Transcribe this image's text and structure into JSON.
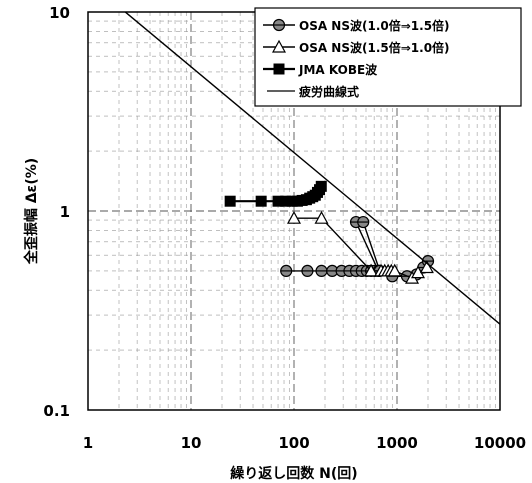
{
  "chart_data": {
    "type": "scatter",
    "title": "",
    "xlabel": "繰り返し回数 N(回)",
    "ylabel": "全歪振幅 Δε(%)",
    "x_scale": "log",
    "y_scale": "log",
    "xlim": [
      1,
      10000
    ],
    "ylim": [
      0.1,
      10
    ],
    "x_ticks": [
      "1",
      "10",
      "100",
      "1000",
      "10000"
    ],
    "y_ticks": [
      "10",
      "1",
      "0.1"
    ],
    "grid": "dashed minor and major gridlines",
    "legend_position": "top-right",
    "series": [
      {
        "name": "OSA NS波(1.0倍⇒1.5倍)",
        "marker": "circle",
        "points": [
          [
            84,
            0.5
          ],
          [
            135,
            0.5
          ],
          [
            185,
            0.5
          ],
          [
            235,
            0.5
          ],
          [
            290,
            0.5
          ],
          [
            345,
            0.5
          ],
          [
            400,
            0.5
          ],
          [
            455,
            0.5
          ],
          [
            510,
            0.5
          ],
          [
            560,
            0.5
          ],
          [
            610,
            0.5
          ],
          [
            660,
            0.5
          ],
          [
            400,
            0.88
          ],
          [
            470,
            0.88
          ],
          [
            680,
            0.5
          ],
          [
            900,
            0.47
          ],
          [
            1250,
            0.47
          ],
          [
            1550,
            0.48
          ],
          [
            1800,
            0.52
          ],
          [
            2000,
            0.56
          ]
        ]
      },
      {
        "name": "OSA NS波(1.5倍⇒1.0倍)",
        "marker": "triangle",
        "points": [
          [
            100,
            0.92
          ],
          [
            185,
            0.92
          ],
          [
            560,
            0.5
          ],
          [
            700,
            0.5
          ],
          [
            760,
            0.5
          ],
          [
            820,
            0.5
          ],
          [
            880,
            0.5
          ],
          [
            950,
            0.5
          ],
          [
            1400,
            0.46
          ],
          [
            1600,
            0.49
          ],
          [
            1950,
            0.52
          ]
        ]
      },
      {
        "name": "JMA KOBE波",
        "marker": "square",
        "points": [
          [
            24,
            1.12
          ],
          [
            48,
            1.12
          ],
          [
            70,
            1.12
          ],
          [
            83,
            1.12
          ],
          [
            96,
            1.12
          ],
          [
            108,
            1.12
          ],
          [
            120,
            1.13
          ],
          [
            132,
            1.14
          ],
          [
            142,
            1.16
          ],
          [
            152,
            1.18
          ],
          [
            161,
            1.2
          ],
          [
            169,
            1.24
          ],
          [
            177,
            1.28
          ],
          [
            184,
            1.33
          ]
        ]
      },
      {
        "name": "疲労曲線式",
        "marker": "line",
        "points": [
          [
            2.3,
            10
          ],
          [
            10000,
            0.27
          ]
        ]
      }
    ]
  }
}
